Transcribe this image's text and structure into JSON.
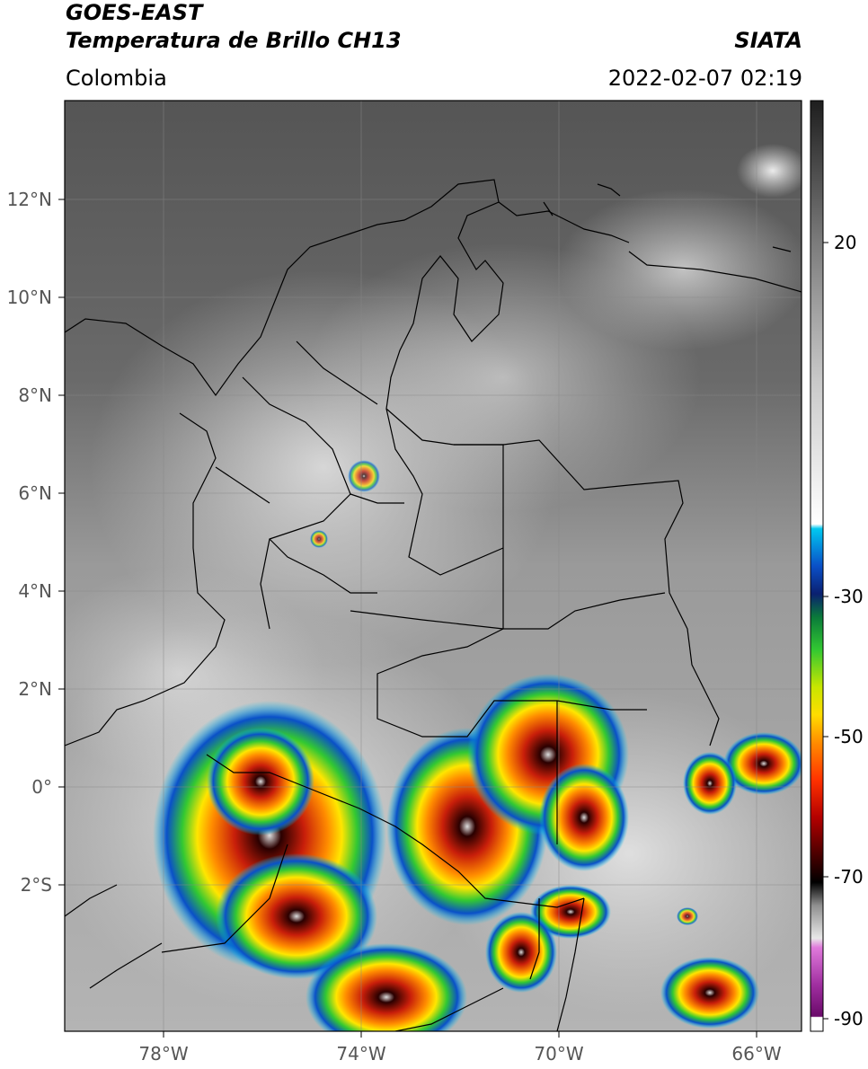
{
  "header": {
    "satellite": "GOES-EAST",
    "product": "Temperatura de Brillo CH13",
    "org": "SIATA",
    "region": "Colombia",
    "timestamp": "2022-02-07 02:19"
  },
  "axes": {
    "lat_labels": [
      "12°N",
      "10°N",
      "8°N",
      "6°N",
      "4°N",
      "2°N",
      "0°",
      "2°S"
    ],
    "lon_labels": [
      "78°W",
      "74°W",
      "70°W",
      "66°W"
    ]
  },
  "colorbar": {
    "tick_labels": [
      "20",
      "-30",
      "-50",
      "-70",
      "-90"
    ]
  },
  "colors": {
    "cold_cloud_red": "#c81e0a",
    "cold_cloud_orange": "#ff8c00",
    "cold_cloud_yellow": "#ffe600",
    "cold_cloud_green": "#32c832",
    "cold_cloud_blue": "#0a50c8",
    "cold_cloud_cyan": "#00c8f0",
    "boundary": "#000000"
  }
}
